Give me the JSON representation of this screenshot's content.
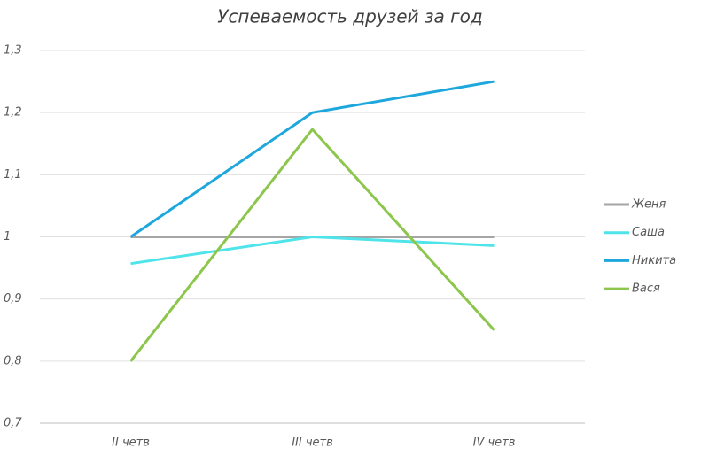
{
  "chart_data": {
    "type": "line",
    "title": "Успеваемость друзей за год",
    "categories": [
      "II четв",
      "III четв",
      "IV четв"
    ],
    "series": [
      {
        "name": "Женя",
        "color": "#a5a5a5",
        "values": [
          1,
          1,
          1
        ]
      },
      {
        "name": "Саша",
        "color": "#4fe3ea",
        "values": [
          0.957,
          1,
          0.986
        ]
      },
      {
        "name": "Никита",
        "color": "#1ea7dc",
        "values": [
          1,
          1.2,
          1.25
        ]
      },
      {
        "name": "Вася",
        "color": "#8dc64c",
        "values": [
          0.8,
          1.173,
          0.85
        ]
      }
    ],
    "ylim": [
      0.7,
      1.3
    ],
    "yticks": [
      {
        "value": 0.7,
        "label": "0,7"
      },
      {
        "value": 0.8,
        "label": "0,8"
      },
      {
        "value": 0.9,
        "label": "0,9"
      },
      1,
      {
        "value": 1.1,
        "label": "1,1"
      },
      {
        "value": 1.2,
        "label": "1,2"
      },
      {
        "value": 1.3,
        "label": "1,3"
      }
    ],
    "grid": true,
    "legend": "right"
  }
}
